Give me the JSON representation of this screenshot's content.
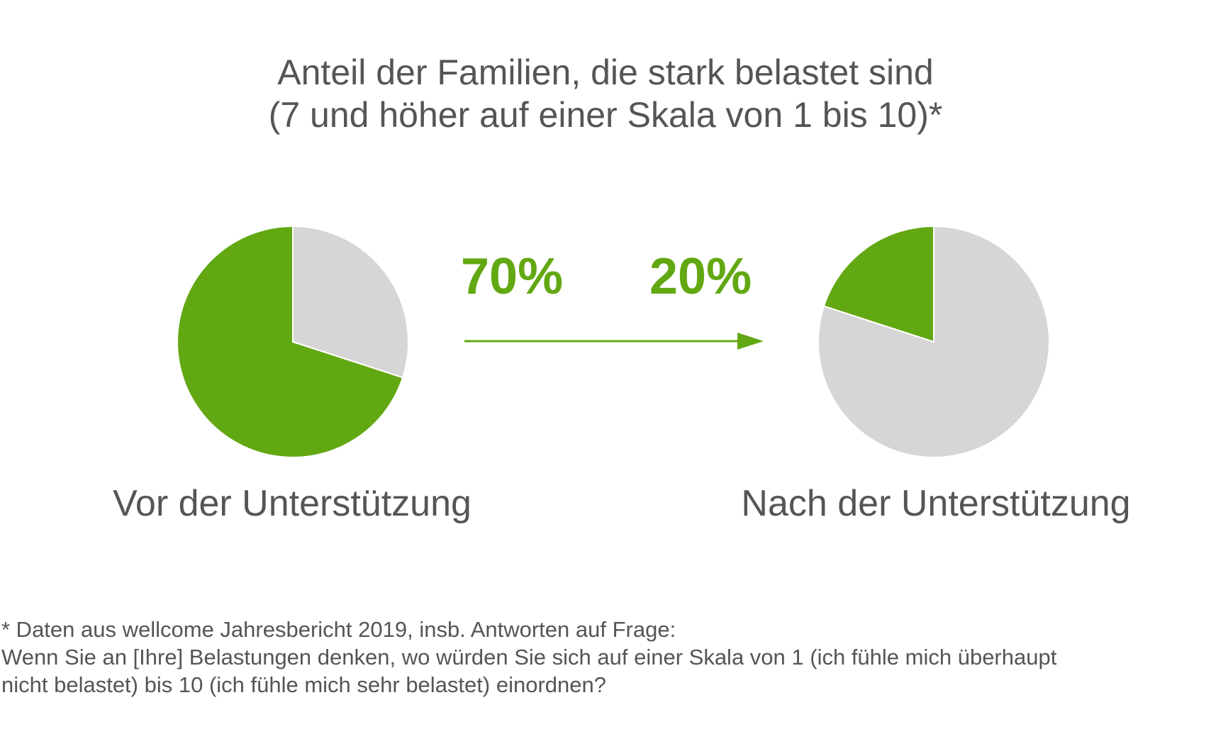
{
  "chart_data": {
    "type": "pie",
    "title_line1": "Anteil der Familien, die stark belastet sind",
    "title_line2": "(7 und höher auf einer Skala von 1 bis 10)*",
    "colors": {
      "highlight": "#62a812",
      "remainder": "#d6d6d6",
      "text": "#555555"
    },
    "pies": [
      {
        "label": "Vor der Unterstützung",
        "value_label": "70%",
        "slices": [
          {
            "value": 70,
            "color": "#62a812"
          },
          {
            "value": 30,
            "color": "#d6d6d6"
          }
        ]
      },
      {
        "label": "Nach der Unterstützung",
        "value_label": "20%",
        "slices": [
          {
            "value": 20,
            "color": "#62a812"
          },
          {
            "value": 80,
            "color": "#d6d6d6"
          }
        ]
      }
    ],
    "arrow": {
      "color": "#62a812",
      "direction": "right"
    }
  },
  "footnote": {
    "line1": "*  Daten aus wellcome Jahresbericht 2019, insb. Antworten auf Frage:",
    "line2": "Wenn Sie an [Ihre] Belastungen denken, wo würden Sie sich auf einer Skala von 1 (ich fühle mich überhaupt",
    "line3": "nicht belastet) bis 10 (ich fühle mich sehr belastet) einordnen?"
  }
}
